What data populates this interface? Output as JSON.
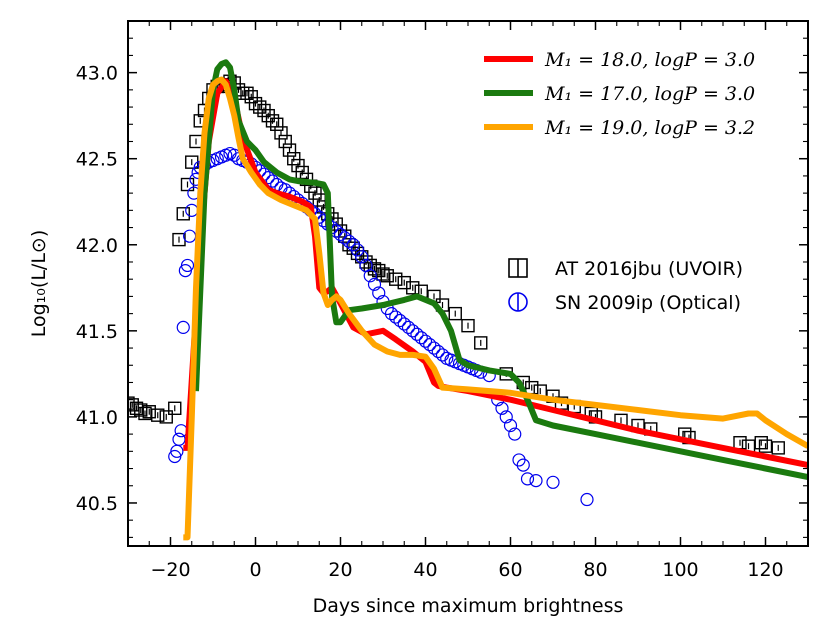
{
  "chart_data": {
    "type": "line",
    "xlabel": "Days since maximum brightness",
    "ylabel": "Log₁₀(L/L⊙)",
    "xlim": [
      -30,
      130
    ],
    "ylim": [
      40.25,
      43.3
    ],
    "x_ticks": [
      -20,
      0,
      20,
      40,
      60,
      80,
      100,
      120
    ],
    "x_tick_labels": [
      "−20",
      "0",
      "20",
      "40",
      "60",
      "80",
      "100",
      "120"
    ],
    "y_ticks": [
      40.5,
      41.0,
      41.5,
      42.0,
      42.5,
      43.0
    ],
    "y_tick_labels": [
      "40.5",
      "41.0",
      "41.5",
      "42.0",
      "42.5",
      "43.0"
    ],
    "legend_position": "top-right",
    "series": [
      {
        "name": "M₁ = 18.0, logP = 3.0",
        "kind": "line",
        "color": "#ff0000",
        "x": [
          -17,
          -16,
          -13,
          -11,
          -9,
          -7,
          -5,
          -3,
          0,
          3,
          5,
          8,
          11,
          13,
          14,
          15,
          16,
          17,
          18,
          20,
          23,
          26,
          30,
          33,
          37,
          40,
          42,
          43,
          45,
          50,
          60,
          70,
          80,
          90,
          100,
          110,
          120,
          130
        ],
        "y": [
          40.82,
          40.82,
          42.0,
          42.6,
          42.88,
          42.95,
          42.85,
          42.62,
          42.42,
          42.32,
          42.3,
          42.28,
          42.25,
          42.22,
          42.05,
          41.75,
          41.72,
          41.73,
          41.75,
          41.66,
          41.52,
          41.48,
          41.5,
          41.45,
          41.38,
          41.32,
          41.2,
          41.18,
          41.17,
          41.15,
          41.1,
          41.04,
          40.98,
          40.92,
          40.87,
          40.82,
          40.77,
          40.72
        ]
      },
      {
        "name": "M₁ = 17.0, logP = 3.0",
        "kind": "line",
        "color": "#1b7a0f",
        "x": [
          -14,
          -12,
          -10,
          -9,
          -8,
          -7,
          -6,
          -5,
          -4,
          -2,
          0,
          2,
          5,
          8,
          10,
          14,
          16,
          17,
          18,
          19,
          20,
          22,
          25,
          30,
          35,
          38,
          42,
          44,
          46,
          48,
          50,
          55,
          60,
          62,
          64,
          66,
          70,
          80,
          90,
          100,
          110,
          120,
          130
        ],
        "y": [
          41.15,
          42.3,
          42.9,
          43.02,
          43.05,
          43.06,
          43.03,
          42.9,
          42.72,
          42.6,
          42.55,
          42.48,
          42.42,
          42.38,
          42.37,
          42.36,
          42.35,
          42.3,
          41.7,
          41.55,
          41.55,
          41.62,
          41.63,
          41.65,
          41.68,
          41.7,
          41.66,
          41.6,
          41.5,
          41.33,
          41.3,
          41.27,
          41.25,
          41.2,
          41.1,
          40.98,
          40.95,
          40.9,
          40.85,
          40.8,
          40.75,
          40.7,
          40.65
        ]
      },
      {
        "name": "M₁ = 19.0, logP = 3.2",
        "kind": "line",
        "color": "#ffa500",
        "x": [
          -17,
          -16,
          -15,
          -14,
          -13,
          -12,
          -11,
          -10,
          -9,
          -8,
          -7,
          -6,
          -5,
          -4,
          -3,
          -1,
          1,
          3,
          6,
          9,
          12,
          14,
          15,
          16,
          17,
          18,
          19,
          20,
          22,
          25,
          28,
          31,
          34,
          37,
          40,
          42,
          44,
          50,
          60,
          70,
          80,
          90,
          100,
          110,
          116,
          118,
          120,
          125,
          130
        ],
        "y": [
          40.3,
          40.3,
          41.0,
          41.75,
          42.3,
          42.65,
          42.85,
          42.93,
          42.95,
          42.96,
          42.93,
          42.85,
          42.75,
          42.62,
          42.5,
          42.42,
          42.35,
          42.3,
          42.26,
          42.23,
          42.2,
          42.15,
          41.95,
          41.72,
          41.65,
          41.68,
          41.7,
          41.68,
          41.6,
          41.5,
          41.42,
          41.38,
          41.36,
          41.36,
          41.35,
          41.28,
          41.17,
          41.16,
          41.14,
          41.1,
          41.07,
          41.04,
          41.01,
          40.99,
          41.02,
          41.02,
          40.98,
          40.9,
          40.83
        ]
      },
      {
        "name": "AT 2016jbu (UVOIR)",
        "kind": "scatter",
        "marker": "square",
        "color": "#000000",
        "x": [
          -30,
          -29,
          -28,
          -27,
          -26,
          -25,
          -23,
          -21,
          -19,
          -18,
          -17,
          -16,
          -15,
          -14,
          -13,
          -12,
          -11,
          -10,
          -9,
          -8,
          -7,
          -6,
          -5,
          -4,
          -3,
          -2,
          -1,
          0,
          1,
          2,
          3,
          4,
          5,
          6,
          7,
          8,
          9,
          10,
          11,
          12,
          13,
          14,
          15,
          16,
          17,
          18,
          19,
          20,
          21,
          22,
          23,
          24,
          25,
          26,
          27,
          28,
          29,
          30,
          31,
          33,
          35,
          37,
          39,
          42,
          44,
          47,
          50,
          53,
          59,
          63,
          65,
          67,
          70,
          72,
          75,
          79,
          80,
          86,
          90,
          93,
          101,
          102,
          114,
          116,
          119,
          120,
          123
        ],
        "y": [
          41.08,
          41.07,
          41.05,
          41.04,
          41.02,
          41.03,
          41.01,
          41.0,
          41.05,
          42.03,
          42.18,
          42.35,
          42.48,
          42.6,
          42.72,
          42.78,
          42.85,
          42.9,
          42.92,
          42.93,
          42.92,
          42.95,
          42.94,
          42.9,
          42.88,
          42.88,
          42.86,
          42.82,
          42.8,
          42.78,
          42.75,
          42.72,
          42.7,
          42.65,
          42.6,
          42.55,
          42.5,
          42.46,
          42.42,
          42.38,
          42.34,
          42.3,
          42.26,
          42.22,
          42.18,
          42.15,
          42.12,
          42.08,
          42.05,
          42.0,
          41.98,
          41.95,
          41.93,
          41.9,
          41.88,
          41.86,
          41.85,
          41.83,
          41.82,
          41.8,
          41.78,
          41.75,
          41.73,
          41.7,
          41.65,
          41.6,
          41.53,
          41.43,
          41.25,
          41.2,
          41.17,
          41.15,
          41.12,
          41.08,
          41.06,
          41.02,
          41.0,
          40.98,
          40.95,
          40.93,
          40.9,
          40.88,
          40.85,
          40.83,
          40.85,
          40.83,
          40.82
        ]
      },
      {
        "name": "SN 2009ip (Optical)",
        "kind": "scatter",
        "marker": "circle",
        "color": "#0000ee",
        "x": [
          -19,
          -18.5,
          -18,
          -17.5,
          -17,
          -16.5,
          -16,
          -15.5,
          -15,
          -14.5,
          -14,
          -13.5,
          -13,
          -12,
          -11,
          -10,
          -9,
          -8,
          -7,
          -6,
          -5,
          -4,
          -3,
          -2,
          -1,
          0,
          1,
          2,
          3,
          4,
          5,
          6,
          7,
          8,
          9,
          10,
          11,
          12,
          13,
          14,
          15,
          16,
          17,
          18,
          19,
          20,
          21,
          22,
          23,
          24,
          25,
          26,
          27,
          28,
          29,
          30,
          31,
          32,
          33,
          34,
          35,
          36,
          37,
          38,
          39,
          40,
          41,
          42,
          43,
          44,
          45,
          46,
          47,
          48,
          49,
          50,
          51,
          52,
          53,
          55,
          57,
          58,
          59,
          60,
          61,
          62,
          63,
          64,
          66,
          70,
          78
        ],
        "y": [
          40.77,
          40.8,
          40.87,
          40.92,
          41.52,
          41.85,
          41.88,
          42.05,
          42.2,
          42.3,
          42.38,
          42.42,
          42.45,
          42.46,
          42.48,
          42.49,
          42.5,
          42.51,
          42.52,
          42.53,
          42.52,
          42.5,
          42.49,
          42.48,
          42.47,
          42.45,
          42.43,
          42.41,
          42.39,
          42.37,
          42.35,
          42.33,
          42.32,
          42.3,
          42.28,
          42.26,
          42.24,
          42.22,
          42.2,
          42.18,
          42.16,
          42.14,
          42.12,
          42.1,
          42.08,
          42.06,
          42.04,
          42.02,
          42.0,
          41.97,
          41.93,
          41.88,
          41.82,
          41.77,
          41.72,
          41.67,
          41.63,
          41.6,
          41.58,
          41.56,
          41.54,
          41.52,
          41.5,
          41.48,
          41.46,
          41.44,
          41.42,
          41.4,
          41.38,
          41.36,
          41.34,
          41.33,
          41.32,
          41.31,
          41.3,
          41.29,
          41.28,
          41.27,
          41.26,
          41.24,
          41.1,
          41.05,
          41.0,
          40.95,
          40.9,
          40.75,
          40.72,
          40.64,
          40.63,
          40.62,
          40.52
        ]
      }
    ]
  }
}
